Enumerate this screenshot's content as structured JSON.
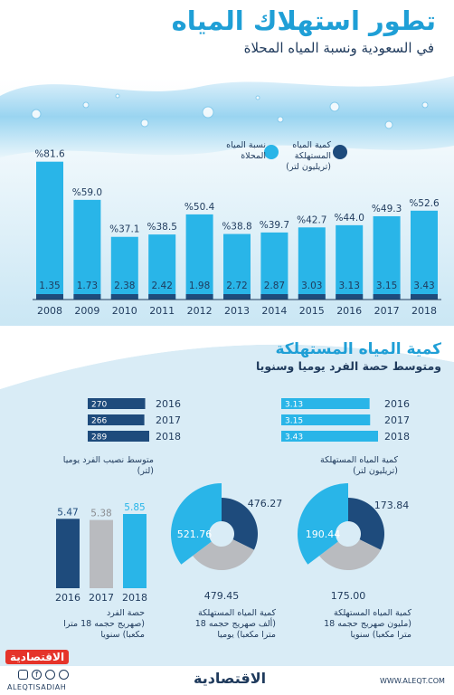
{
  "header": {
    "title": "تطور استهلاك المياه",
    "subtitle": "في السعودية ونسبة المياه المحلاة"
  },
  "legend": {
    "desal": "نسبة المياه المحلاة",
    "consumed_1": "كمية المياه المستهلكة",
    "consumed_2": "(تريليون لتر)"
  },
  "section2": {
    "title": "كمية المياه المستهلكة",
    "subtitle": "ومتوسط حصة الفرد يوميا وسنويا",
    "per_capita_caption_1": "متوسط نصيب الفرد يوميا",
    "per_capita_caption_2": "(لتر)",
    "consumed_caption_1": "كمية المياه المستهلكة",
    "consumed_caption_2": "(تريليون لتر)",
    "share_caption_1": "حصة الفرد",
    "share_caption_2": "(صهريج حجمه 18 مترا",
    "share_caption_3": "مكعبا) سنويا",
    "donut_mid_caption_1": "كمية المياه المستهلكة",
    "donut_mid_caption_2": "(ألف صهريج حجمه 18",
    "donut_mid_caption_3": "مترا مكعبا) يوميا",
    "donut_right_caption_1": "كمية المياه المستهلكة",
    "donut_right_caption_2": "(مليون صهريج حجمه 18",
    "donut_right_caption_3": "مترا مكعبا) سنويا"
  },
  "footer": {
    "logo": "الاقتصادية",
    "logo_small": "الاقتصادية",
    "handle": "ALEQTISADIAH",
    "website": "WWW.ALEQT.COM"
  },
  "colors": {
    "dark": "#1e4b7c",
    "light": "#29b5e8",
    "grey": "#b9bbbf",
    "panel": "#d9ecf6"
  },
  "chart_data": [
    {
      "type": "bar",
      "categories": [
        "2008",
        "2009",
        "2010",
        "2011",
        "2012",
        "2013",
        "2014",
        "2015",
        "2016",
        "2017",
        "2018"
      ],
      "series": [
        {
          "name": "نسبة المياه المحلاة",
          "values": [
            81.6,
            59.0,
            37.1,
            38.5,
            50.4,
            38.8,
            39.7,
            42.7,
            44.0,
            49.3,
            52.6
          ],
          "labels": [
            "%81.6",
            "%59.0",
            "%37.1",
            "%38.5",
            "%50.4",
            "%38.8",
            "%39.7",
            "%42.7",
            "%44.0",
            "%49.3",
            "%52.6"
          ]
        },
        {
          "name": "كمية المياه المستهلكة",
          "values": [
            1.35,
            1.73,
            2.38,
            2.42,
            1.98,
            2.72,
            2.87,
            3.03,
            3.13,
            3.15,
            3.43
          ],
          "labels": [
            "1.35",
            "1.73",
            "2.38",
            "2.42",
            "1.98",
            "2.72",
            "2.87",
            "3.03",
            "3.13",
            "3.15",
            "3.43"
          ]
        }
      ]
    },
    {
      "type": "bar",
      "orientation": "horizontal",
      "categories": [
        "2016",
        "2017",
        "2018"
      ],
      "values": [
        270,
        266,
        289
      ],
      "labels": [
        "270",
        "266",
        "289"
      ]
    },
    {
      "type": "bar",
      "orientation": "horizontal",
      "categories": [
        "2016",
        "2017",
        "2018"
      ],
      "values": [
        3.13,
        3.15,
        3.43
      ],
      "labels": [
        "3.13",
        "3.15",
        "3.43"
      ]
    },
    {
      "type": "bar",
      "categories": [
        "2016",
        "2017",
        "2018"
      ],
      "values": [
        5.47,
        5.38,
        5.85
      ],
      "labels": [
        "5.47",
        "5.38",
        "5.85"
      ]
    },
    {
      "type": "pie",
      "categories": [
        "2016",
        "2017",
        "2018"
      ],
      "values": [
        476.27,
        479.45,
        521.76
      ],
      "labels": [
        "476.27",
        "479.45",
        "521.76"
      ]
    },
    {
      "type": "pie",
      "categories": [
        "2016",
        "2017",
        "2018"
      ],
      "values": [
        173.84,
        175.0,
        190.44
      ],
      "labels": [
        "173.84",
        "175.00",
        "190.44"
      ]
    }
  ]
}
